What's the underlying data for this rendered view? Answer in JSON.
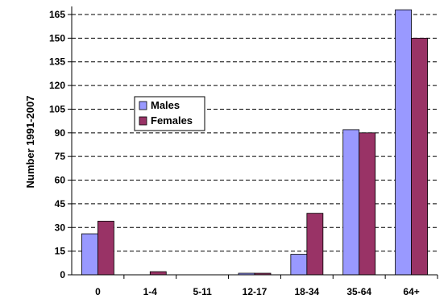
{
  "chart_data": {
    "type": "bar",
    "title": "",
    "xlabel": "",
    "ylabel": "Number 1991-2007",
    "categories": [
      "0",
      "1-4",
      "5-11",
      "12-17",
      "18-34",
      "35-64",
      "64+"
    ],
    "series": [
      {
        "name": "Males",
        "color": "#9999FF",
        "values": [
          26,
          0,
          0,
          1,
          13,
          92,
          168
        ]
      },
      {
        "name": "Females",
        "color": "#993366",
        "values": [
          34,
          2,
          0,
          1,
          39,
          90,
          150
        ]
      }
    ],
    "yticks": [
      0,
      15,
      30,
      45,
      60,
      75,
      90,
      105,
      120,
      135,
      150,
      165
    ],
    "ylim": [
      0,
      165
    ],
    "grid": true,
    "legend": "center-left"
  }
}
